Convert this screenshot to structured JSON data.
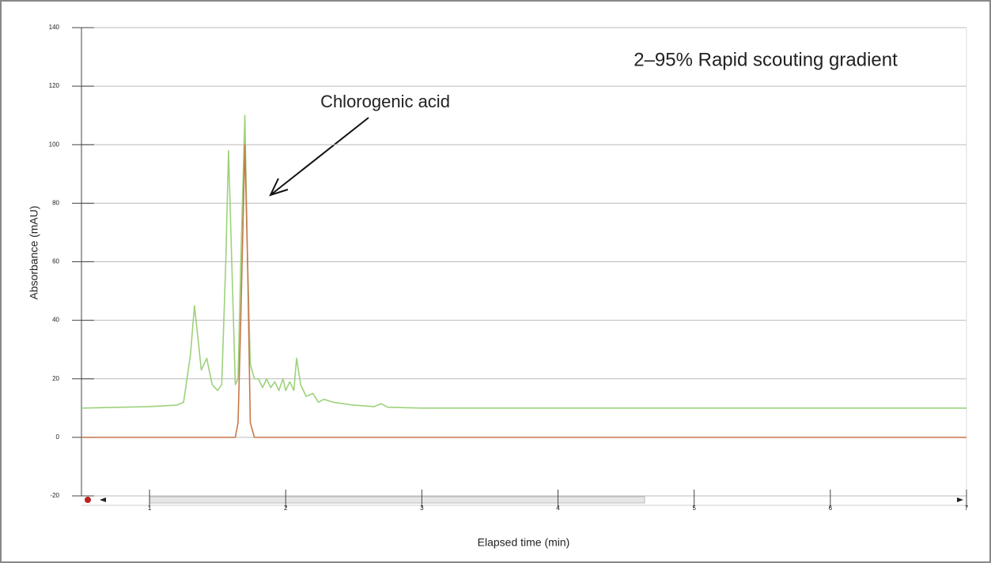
{
  "chart_data": {
    "type": "line",
    "title": "2–95% Rapid scouting gradient",
    "annotation": "Chlorogenic acid",
    "x_label": "Elapsed time (min)",
    "y_label": "Absorbance (mAU)",
    "x": [
      0.5,
      1.0,
      1.2,
      1.25,
      1.3,
      1.33,
      1.36,
      1.38,
      1.42,
      1.46,
      1.5,
      1.53,
      1.56,
      1.58,
      1.61,
      1.63,
      1.65,
      1.67,
      1.7,
      1.72,
      1.74,
      1.77,
      1.8,
      1.83,
      1.86,
      1.89,
      1.92,
      1.95,
      1.98,
      2.0,
      2.03,
      2.06,
      2.08,
      2.11,
      2.15,
      2.2,
      2.24,
      2.28,
      2.35,
      2.5,
      2.65,
      2.7,
      2.75,
      3,
      4,
      5,
      6,
      7
    ],
    "series": [
      {
        "color": "#9dd27a",
        "values": [
          10,
          10.5,
          11,
          12,
          28,
          45,
          32,
          23,
          27,
          18,
          16,
          18,
          60,
          98,
          50,
          18,
          20,
          60,
          110,
          60,
          25,
          20,
          20,
          17,
          20,
          17,
          19,
          16,
          20,
          16,
          19,
          16,
          27,
          18,
          14,
          15,
          12,
          13,
          12,
          11,
          10.5,
          11.5,
          10.3,
          10,
          10,
          10,
          10,
          10
        ]
      },
      {
        "color": "#c8784a",
        "values": [
          0,
          0,
          0,
          0,
          0,
          0,
          0,
          0,
          0,
          0,
          0,
          0,
          0,
          0,
          0,
          0,
          5,
          40,
          100,
          60,
          5,
          0,
          0,
          0,
          0,
          0,
          0,
          0,
          0,
          0,
          0,
          0,
          0,
          0,
          0,
          0,
          0,
          0,
          0,
          0,
          0,
          0,
          0,
          0,
          0,
          0,
          0,
          0
        ]
      }
    ],
    "xlim": [
      0.5,
      7
    ],
    "ylim": [
      -20,
      140
    ],
    "xticks": [
      1,
      2,
      3,
      4,
      5,
      6,
      7
    ],
    "yticks": [
      -20,
      0,
      20,
      40,
      60,
      80,
      100,
      120,
      140
    ],
    "grid": true
  }
}
